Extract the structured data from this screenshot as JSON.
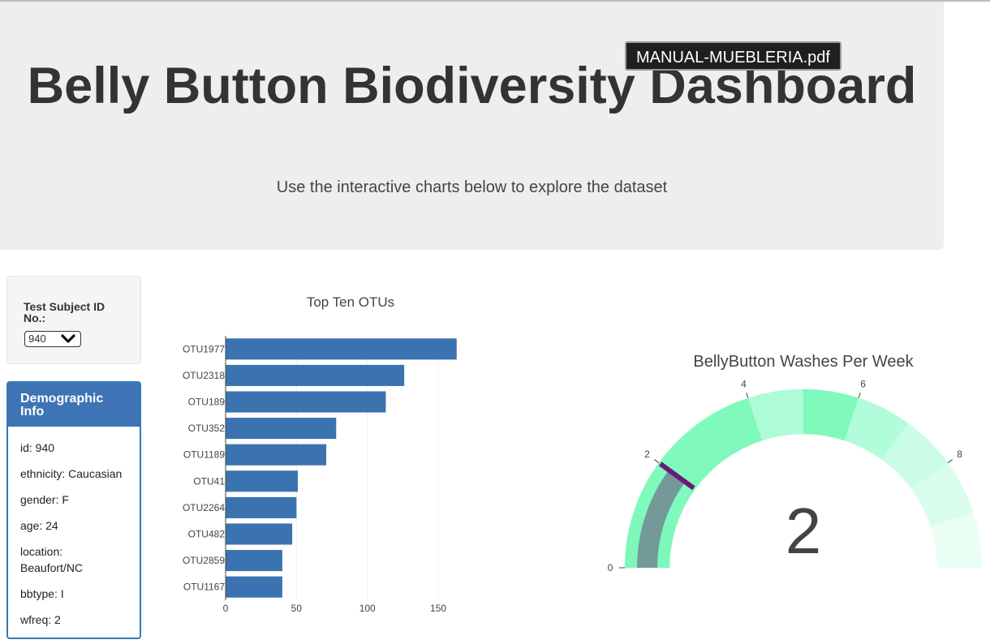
{
  "header": {
    "title": "Belly Button Biodiversity Dashboard",
    "subtitle": "Use the interactive charts below to explore the dataset"
  },
  "tooltip": {
    "text": "MANUAL-MUEBLERIA.pdf"
  },
  "selector": {
    "label": "Test Subject ID No.:",
    "selected": "940",
    "icon": "chevron-down-icon"
  },
  "demographics": {
    "heading": "Demographic Info",
    "rows": [
      "id: 940",
      "ethnicity: Caucasian",
      "gender: F",
      "age: 24",
      "location: Beaufort/NC",
      "bbtype: I",
      "wfreq: 2"
    ]
  },
  "colors": {
    "bar": "#3b73b0",
    "panel_border": "#337ab7",
    "panel_heading": "#3e74b5",
    "needle": "#6a1a7a",
    "gauge_value": "#739a99"
  },
  "chart_data": [
    {
      "type": "bar",
      "orientation": "horizontal",
      "title": "Top Ten OTUs",
      "categories": [
        "OTU1977",
        "OTU2318",
        "OTU189",
        "OTU352",
        "OTU1189",
        "OTU41",
        "OTU2264",
        "OTU482",
        "OTU2859",
        "OTU1167"
      ],
      "values": [
        163,
        126,
        113,
        78,
        71,
        51,
        50,
        47,
        40,
        40
      ],
      "xlim": [
        0,
        170
      ],
      "xticks": [
        0,
        50,
        100,
        150
      ],
      "grid": true
    },
    {
      "type": "gauge",
      "title": "BellyButton Washes Per Week",
      "value": 2,
      "value_label": "2",
      "range": [
        0,
        10
      ],
      "tick_labels": [
        "0",
        "2",
        "4",
        "6",
        "8"
      ],
      "ticks": [
        0,
        2,
        4,
        6,
        8
      ],
      "bands": [
        {
          "from": 0,
          "to": 1,
          "color": "#7ef7bb"
        },
        {
          "from": 1,
          "to": 2,
          "color": "#80f9bd"
        },
        {
          "from": 2,
          "to": 3,
          "color": "#80f9bd"
        },
        {
          "from": 3,
          "to": 4,
          "color": "#7ff9bc"
        },
        {
          "from": 4,
          "to": 5,
          "color": "#aefbd8"
        },
        {
          "from": 5,
          "to": 6,
          "color": "#80f9bd"
        },
        {
          "from": 6,
          "to": 7,
          "color": "#b1fcda"
        },
        {
          "from": 7,
          "to": 8,
          "color": "#cbfde6"
        },
        {
          "from": 8,
          "to": 9,
          "color": "#d8fdec"
        },
        {
          "from": 9,
          "to": 10,
          "color": "#eafef4"
        }
      ]
    }
  ]
}
